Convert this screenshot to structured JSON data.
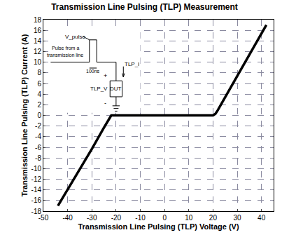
{
  "chart_data": {
    "type": "line",
    "title": "Transmission Line Pulsing (TLP) Measurement",
    "x_label": "Transmission Line Pulsing (TLP) Voltage (V)",
    "y_label": "Transmission Line Pulsing (TLP) Current (A)",
    "x": [
      -44,
      -40,
      -35,
      -30,
      -25,
      -22,
      -21,
      0,
      20,
      21,
      22,
      25,
      30,
      35,
      40,
      42
    ],
    "values": [
      -17,
      -14,
      -10.2,
      -6.3,
      -2.3,
      0,
      0,
      0,
      0,
      0.3,
      1,
      3.4,
      7.4,
      11.4,
      15.2,
      17
    ],
    "color": "#000000",
    "line_style": "solid",
    "xlim": [
      -50,
      45
    ],
    "xticks": [
      -50,
      -40,
      -30,
      -20,
      -10,
      0,
      10,
      20,
      30,
      40
    ],
    "ylim": [
      -18,
      18
    ],
    "yticks": [
      -18,
      -16,
      -14,
      -12,
      -10,
      -8,
      -6,
      -4,
      -2,
      0,
      2,
      4,
      6,
      8,
      10,
      12,
      14,
      16,
      18
    ],
    "grid": true,
    "annotations": [
      "V_pulse",
      "Pulse from a",
      "transmission line",
      "100ns",
      "TLP_I",
      "+",
      "TLP_V",
      "-",
      "DUT"
    ]
  }
}
